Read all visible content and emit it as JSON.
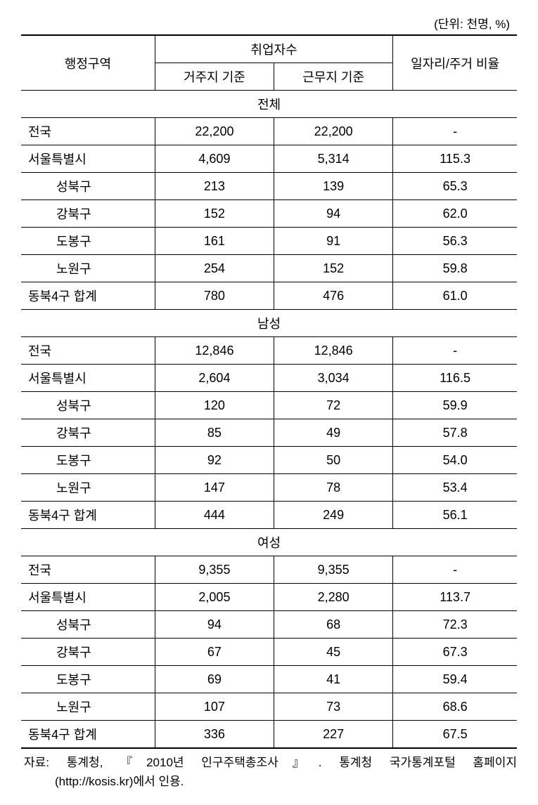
{
  "unit_note": "(단위: 천명, %)",
  "table": {
    "headers": {
      "region": "행정구역",
      "employed_group": "취업자수",
      "residence": "거주지 기준",
      "workplace": "근무지 기준",
      "ratio": "일자리/주거 비율"
    },
    "sections": [
      {
        "title": "전체",
        "rows": [
          {
            "region": "전국",
            "indent": false,
            "residence": "22,200",
            "workplace": "22,200",
            "ratio": "-"
          },
          {
            "region": "서울특별시",
            "indent": false,
            "residence": "4,609",
            "workplace": "5,314",
            "ratio": "115.3"
          },
          {
            "region": "성북구",
            "indent": true,
            "residence": "213",
            "workplace": "139",
            "ratio": "65.3"
          },
          {
            "region": "강북구",
            "indent": true,
            "residence": "152",
            "workplace": "94",
            "ratio": "62.0"
          },
          {
            "region": "도봉구",
            "indent": true,
            "residence": "161",
            "workplace": "91",
            "ratio": "56.3"
          },
          {
            "region": "노원구",
            "indent": true,
            "residence": "254",
            "workplace": "152",
            "ratio": "59.8"
          },
          {
            "region": "동북4구 합계",
            "indent": false,
            "residence": "780",
            "workplace": "476",
            "ratio": "61.0"
          }
        ]
      },
      {
        "title": "남성",
        "rows": [
          {
            "region": "전국",
            "indent": false,
            "residence": "12,846",
            "workplace": "12,846",
            "ratio": "-"
          },
          {
            "region": "서울특별시",
            "indent": false,
            "residence": "2,604",
            "workplace": "3,034",
            "ratio": "116.5"
          },
          {
            "region": "성북구",
            "indent": true,
            "residence": "120",
            "workplace": "72",
            "ratio": "59.9"
          },
          {
            "region": "강북구",
            "indent": true,
            "residence": "85",
            "workplace": "49",
            "ratio": "57.8"
          },
          {
            "region": "도봉구",
            "indent": true,
            "residence": "92",
            "workplace": "50",
            "ratio": "54.0"
          },
          {
            "region": "노원구",
            "indent": true,
            "residence": "147",
            "workplace": "78",
            "ratio": "53.4"
          },
          {
            "region": "동북4구 합계",
            "indent": false,
            "residence": "444",
            "workplace": "249",
            "ratio": "56.1"
          }
        ]
      },
      {
        "title": "여성",
        "rows": [
          {
            "region": "전국",
            "indent": false,
            "residence": "9,355",
            "workplace": "9,355",
            "ratio": "-"
          },
          {
            "region": "서울특별시",
            "indent": false,
            "residence": "2,005",
            "workplace": "2,280",
            "ratio": "113.7"
          },
          {
            "region": "성북구",
            "indent": true,
            "residence": "94",
            "workplace": "68",
            "ratio": "72.3"
          },
          {
            "region": "강북구",
            "indent": true,
            "residence": "67",
            "workplace": "45",
            "ratio": "67.3"
          },
          {
            "region": "도봉구",
            "indent": true,
            "residence": "69",
            "workplace": "41",
            "ratio": "59.4"
          },
          {
            "region": "노원구",
            "indent": true,
            "residence": "107",
            "workplace": "73",
            "ratio": "68.6"
          },
          {
            "region": "동북4구 합계",
            "indent": false,
            "residence": "336",
            "workplace": "227",
            "ratio": "67.5"
          }
        ]
      }
    ]
  },
  "source": {
    "line1": "자료: 통계청, 『2010년 인구주택총조사』. 통계청 국가통계포털 홈페이지",
    "line2": "(http://kosis.kr)에서 인용."
  },
  "style": {
    "col_widths": [
      "27%",
      "24%",
      "24%",
      "25%"
    ],
    "text_color": "#000000",
    "background_color": "#ffffff",
    "border_color": "#000000",
    "font_size_table": 18,
    "font_size_notes": 17
  }
}
